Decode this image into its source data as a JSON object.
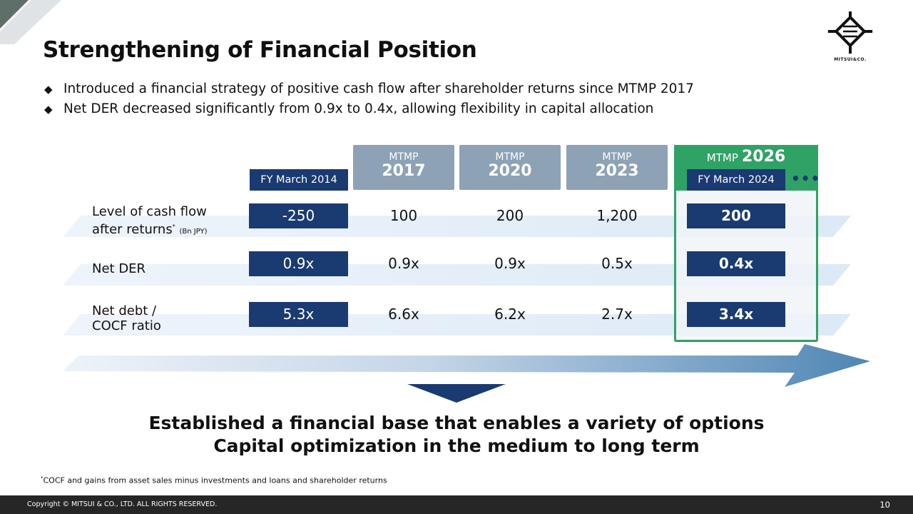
{
  "title": "Strengthening of Financial Position",
  "logo_text": "MITSUI&CO.",
  "bullets": [
    "Introduced a financial strategy of positive cash flow after shareholder returns since MTMP 2017",
    "Net DER decreased significantly from 0.9x to 0.4x, allowing flexibility in capital allocation"
  ],
  "bullet_symbol": "◆",
  "columns": {
    "fy2014": "FY March 2014",
    "mtmp_small": "MTMP",
    "mtmp2017": "2017",
    "mtmp2020": "2020",
    "mtmp2023": "2023",
    "mtmp2026_prefix": "MTMP",
    "mtmp2026_year": "2026",
    "fy2024": "FY March 2024",
    "more": "•••"
  },
  "rows": {
    "cash": {
      "label_line1": "Level of cash flow",
      "label_line2": "after returns",
      "label_mark": "*",
      "label_unit": "(Bn JPY)",
      "v2014": "-250",
      "v2017": "100",
      "v2020": "200",
      "v2023": "1,200",
      "v2024": "200"
    },
    "der": {
      "label": "Net DER",
      "v2014": "0.9x",
      "v2017": "0.9x",
      "v2020": "0.9x",
      "v2023": "0.5x",
      "v2024": "0.4x"
    },
    "debt": {
      "label_line1": "Net debt /",
      "label_line2": "COCF ratio",
      "v2014": "5.3x",
      "v2017": "6.6x",
      "v2020": "6.2x",
      "v2023": "2.7x",
      "v2024": "3.4x"
    }
  },
  "conclusion": {
    "line1": "Established a financial base that enables a variety of options",
    "line2": "Capital optimization in the medium to long term"
  },
  "footnote_mark": "*",
  "footnote": "COCF and gains from asset sales minus investments and loans and shareholder returns",
  "copyright": "Copyright © MITSUI & CO., LTD. ALL RIGHTS RESERVED.",
  "page_number": "10",
  "colors": {
    "navy": "#1a3a72",
    "header_gray": "#8da2b5",
    "green": "#2fa265",
    "footer": "#262626"
  }
}
